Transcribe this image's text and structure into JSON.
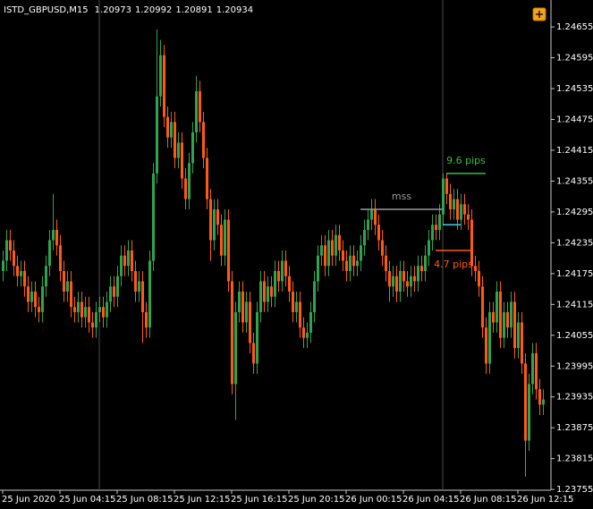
{
  "chart_data": {
    "type": "candlestick",
    "symbol": "ISTD_GBPUSD,M15",
    "header_ohlc": [
      1.20973,
      1.20992,
      1.20891,
      1.20934
    ],
    "up_color": "#2ea44f",
    "down_color": "#ff5a14",
    "xlim": [
      -0.75,
      153.25
    ],
    "xticks": [
      {
        "value": 0,
        "label": "25 Jun 2020"
      },
      {
        "value": 16,
        "label": "25 Jun 04:15"
      },
      {
        "value": 32,
        "label": "25 Jun 08:15"
      },
      {
        "value": 48,
        "label": "25 Jun 12:15"
      },
      {
        "value": 64,
        "label": "25 Jun 16:15"
      },
      {
        "value": 80,
        "label": "25 Jun 20:15"
      },
      {
        "value": 96,
        "label": "26 Jun 00:15"
      },
      {
        "value": 112,
        "label": "26 Jun 04:15"
      },
      {
        "value": 128,
        "label": "26 Jun 08:15"
      },
      {
        "value": 144,
        "label": "26 Jun 12:15"
      }
    ],
    "ylim": [
      1.2375,
      1.2469
    ],
    "yticks": [
      1.24655,
      1.24595,
      1.24535,
      1.24475,
      1.24415,
      1.24355,
      1.24295,
      1.24235,
      1.24175,
      1.24115,
      1.24055,
      1.23995,
      1.23935,
      1.23875,
      1.23815,
      1.23755
    ],
    "separators": [
      27,
      123
    ],
    "annotations": [
      {
        "text": "mss",
        "color": "#9a9a9a",
        "level": 1.243,
        "from": 100,
        "to": 123,
        "label_side": "above"
      },
      {
        "text": "9.6 pips",
        "color": "#35c03a",
        "level": 1.2437,
        "from": 124,
        "to": 135,
        "label_side": "above"
      },
      {
        "text": "4.7 pips",
        "color": "#ff5a14",
        "level": 1.2422,
        "from": 121,
        "to": 131,
        "label_side": "below"
      },
      {
        "color": "#3fd0e0",
        "level": 1.2427,
        "from": 123,
        "to": 128
      }
    ],
    "ohlc": [
      [
        1.2418,
        1.2422,
        1.2416,
        1.242
      ],
      [
        1.242,
        1.2426,
        1.2418,
        1.2424
      ],
      [
        1.2424,
        1.2426,
        1.242,
        1.2422
      ],
      [
        1.2422,
        1.2424,
        1.2417,
        1.2419
      ],
      [
        1.2419,
        1.2421,
        1.2415,
        1.2417
      ],
      [
        1.2417,
        1.242,
        1.2415,
        1.2418
      ],
      [
        1.2418,
        1.242,
        1.2413,
        1.2415
      ],
      [
        1.2415,
        1.2417,
        1.241,
        1.2412
      ],
      [
        1.2412,
        1.2416,
        1.241,
        1.2414
      ],
      [
        1.2414,
        1.2416,
        1.2409,
        1.2411
      ],
      [
        1.2411,
        1.2413,
        1.2408,
        1.241
      ],
      [
        1.241,
        1.2417,
        1.2408,
        1.2415
      ],
      [
        1.2415,
        1.2421,
        1.2413,
        1.2419
      ],
      [
        1.2419,
        1.2426,
        1.2417,
        1.2424
      ],
      [
        1.2424,
        1.2433,
        1.2422,
        1.2426
      ],
      [
        1.2426,
        1.2428,
        1.2421,
        1.2423
      ],
      [
        1.2423,
        1.2425,
        1.2416,
        1.2418
      ],
      [
        1.2418,
        1.242,
        1.2412,
        1.2414
      ],
      [
        1.2414,
        1.2418,
        1.2412,
        1.2416
      ],
      [
        1.2416,
        1.2418,
        1.2409,
        1.2411
      ],
      [
        1.2411,
        1.2413,
        1.2408,
        1.241
      ],
      [
        1.241,
        1.2414,
        1.2408,
        1.2412
      ],
      [
        1.2412,
        1.2414,
        1.2407,
        1.2409
      ],
      [
        1.2409,
        1.2413,
        1.2407,
        1.2411
      ],
      [
        1.2411,
        1.2413,
        1.2406,
        1.2408
      ],
      [
        1.2408,
        1.241,
        1.2405,
        1.2407
      ],
      [
        1.2407,
        1.2412,
        1.2405,
        1.241
      ],
      [
        1.241,
        1.2413,
        1.2408,
        1.2411
      ],
      [
        1.2411,
        1.2413,
        1.2407,
        1.2409
      ],
      [
        1.2409,
        1.2414,
        1.2407,
        1.2412
      ],
      [
        1.2412,
        1.2417,
        1.241,
        1.2415
      ],
      [
        1.2415,
        1.2417,
        1.2411,
        1.2413
      ],
      [
        1.2413,
        1.2419,
        1.2411,
        1.2417
      ],
      [
        1.2417,
        1.2423,
        1.2415,
        1.2421
      ],
      [
        1.2421,
        1.2423,
        1.2417,
        1.2419
      ],
      [
        1.2419,
        1.2424,
        1.2417,
        1.2422
      ],
      [
        1.2422,
        1.2424,
        1.2416,
        1.2418
      ],
      [
        1.2418,
        1.242,
        1.2412,
        1.2414
      ],
      [
        1.2414,
        1.2418,
        1.2412,
        1.2416
      ],
      [
        1.2416,
        1.2418,
        1.2404,
        1.241
      ],
      [
        1.241,
        1.2412,
        1.2405,
        1.2407
      ],
      [
        1.2407,
        1.2422,
        1.2405,
        1.242
      ],
      [
        1.242,
        1.2439,
        1.2418,
        1.2437
      ],
      [
        1.2437,
        1.2465,
        1.2435,
        1.2452
      ],
      [
        1.2452,
        1.2463,
        1.245,
        1.246
      ],
      [
        1.246,
        1.2462,
        1.2446,
        1.2448
      ],
      [
        1.2448,
        1.245,
        1.2442,
        1.2444
      ],
      [
        1.2444,
        1.2449,
        1.2442,
        1.2447
      ],
      [
        1.2447,
        1.2449,
        1.2438,
        1.244
      ],
      [
        1.244,
        1.2445,
        1.2438,
        1.2443
      ],
      [
        1.2443,
        1.2445,
        1.2434,
        1.2436
      ],
      [
        1.2436,
        1.2438,
        1.243,
        1.2432
      ],
      [
        1.2432,
        1.2441,
        1.243,
        1.2439
      ],
      [
        1.2439,
        1.2447,
        1.2437,
        1.2445
      ],
      [
        1.2445,
        1.2456,
        1.2443,
        1.2453
      ],
      [
        1.2453,
        1.2455,
        1.2445,
        1.2447
      ],
      [
        1.2447,
        1.2449,
        1.2438,
        1.244
      ],
      [
        1.244,
        1.2442,
        1.243,
        1.2432
      ],
      [
        1.2432,
        1.2434,
        1.242,
        1.2424
      ],
      [
        1.2424,
        1.2432,
        1.2422,
        1.243
      ],
      [
        1.243,
        1.2432,
        1.2425,
        1.2427
      ],
      [
        1.2427,
        1.2429,
        1.2419,
        1.2421
      ],
      [
        1.2421,
        1.243,
        1.2419,
        1.2428
      ],
      [
        1.2428,
        1.243,
        1.2414,
        1.2416
      ],
      [
        1.2416,
        1.2418,
        1.2394,
        1.2396
      ],
      [
        1.2396,
        1.2412,
        1.2389,
        1.241
      ],
      [
        1.241,
        1.2416,
        1.2408,
        1.2414
      ],
      [
        1.2414,
        1.2416,
        1.2406,
        1.2408
      ],
      [
        1.2408,
        1.2414,
        1.2406,
        1.2412
      ],
      [
        1.2412,
        1.2414,
        1.2402,
        1.2404
      ],
      [
        1.2404,
        1.2406,
        1.2398,
        1.24
      ],
      [
        1.24,
        1.2412,
        1.2398,
        1.241
      ],
      [
        1.241,
        1.2418,
        1.2408,
        1.2416
      ],
      [
        1.2416,
        1.2418,
        1.241,
        1.2412
      ],
      [
        1.2412,
        1.2417,
        1.241,
        1.2415
      ],
      [
        1.2415,
        1.2417,
        1.2411,
        1.2413
      ],
      [
        1.2413,
        1.242,
        1.2411,
        1.2418
      ],
      [
        1.2418,
        1.242,
        1.2414,
        1.2416
      ],
      [
        1.2416,
        1.2422,
        1.2414,
        1.242
      ],
      [
        1.242,
        1.2422,
        1.2415,
        1.2417
      ],
      [
        1.2417,
        1.2419,
        1.2412,
        1.2414
      ],
      [
        1.2414,
        1.2416,
        1.2408,
        1.241
      ],
      [
        1.241,
        1.2414,
        1.2408,
        1.2412
      ],
      [
        1.2412,
        1.2414,
        1.2405,
        1.2407
      ],
      [
        1.2407,
        1.2409,
        1.2403,
        1.2405
      ],
      [
        1.2405,
        1.2408,
        1.2403,
        1.2406
      ],
      [
        1.2406,
        1.2412,
        1.2404,
        1.241
      ],
      [
        1.241,
        1.2418,
        1.2408,
        1.2416
      ],
      [
        1.2416,
        1.2423,
        1.2414,
        1.2421
      ],
      [
        1.2421,
        1.2425,
        1.2419,
        1.2423
      ],
      [
        1.2423,
        1.2425,
        1.2417,
        1.2419
      ],
      [
        1.2419,
        1.2426,
        1.2417,
        1.2424
      ],
      [
        1.2424,
        1.2426,
        1.2419,
        1.2421
      ],
      [
        1.2421,
        1.2427,
        1.2419,
        1.2425
      ],
      [
        1.2425,
        1.2427,
        1.242,
        1.2422
      ],
      [
        1.2422,
        1.2424,
        1.2418,
        1.242
      ],
      [
        1.242,
        1.2422,
        1.2416,
        1.2418
      ],
      [
        1.2418,
        1.2423,
        1.2416,
        1.2421
      ],
      [
        1.2421,
        1.2423,
        1.2417,
        1.2419
      ],
      [
        1.2419,
        1.2422,
        1.2417,
        1.242
      ],
      [
        1.242,
        1.2425,
        1.2418,
        1.2423
      ],
      [
        1.2423,
        1.2428,
        1.2421,
        1.2426
      ],
      [
        1.2426,
        1.243,
        1.2424,
        1.2428
      ],
      [
        1.2428,
        1.2432,
        1.2426,
        1.243
      ],
      [
        1.243,
        1.2432,
        1.2425,
        1.2427
      ],
      [
        1.2427,
        1.2429,
        1.2422,
        1.2424
      ],
      [
        1.2424,
        1.2426,
        1.2419,
        1.2421
      ],
      [
        1.2421,
        1.2423,
        1.2416,
        1.2418
      ],
      [
        1.2418,
        1.242,
        1.2412,
        1.2415
      ],
      [
        1.2415,
        1.2419,
        1.2413,
        1.2417
      ],
      [
        1.2417,
        1.2419,
        1.2412,
        1.2414
      ],
      [
        1.2414,
        1.242,
        1.2412,
        1.2418
      ],
      [
        1.2418,
        1.242,
        1.2414,
        1.2416
      ],
      [
        1.2416,
        1.2418,
        1.2413,
        1.2415
      ],
      [
        1.2415,
        1.2419,
        1.2413,
        1.2417
      ],
      [
        1.2417,
        1.2419,
        1.2414,
        1.2416
      ],
      [
        1.2416,
        1.2421,
        1.2414,
        1.2419
      ],
      [
        1.2419,
        1.2421,
        1.2416,
        1.2418
      ],
      [
        1.2418,
        1.2423,
        1.2416,
        1.2421
      ],
      [
        1.2421,
        1.2426,
        1.2419,
        1.2424
      ],
      [
        1.2424,
        1.2429,
        1.2422,
        1.2427
      ],
      [
        1.2427,
        1.2429,
        1.2424,
        1.2426
      ],
      [
        1.2426,
        1.2431,
        1.2424,
        1.2429
      ],
      [
        1.2429,
        1.2437,
        1.2427,
        1.2436
      ],
      [
        1.2436,
        1.2437,
        1.2431,
        1.2433
      ],
      [
        1.2433,
        1.2435,
        1.2428,
        1.243
      ],
      [
        1.243,
        1.2434,
        1.2428,
        1.2432
      ],
      [
        1.2432,
        1.2434,
        1.2426,
        1.2428
      ],
      [
        1.2428,
        1.2433,
        1.2426,
        1.2431
      ],
      [
        1.2431,
        1.2433,
        1.2427,
        1.2429
      ],
      [
        1.2429,
        1.2431,
        1.2426,
        1.2428
      ],
      [
        1.2428,
        1.243,
        1.2417,
        1.2419
      ],
      [
        1.2419,
        1.2421,
        1.2416,
        1.2418
      ],
      [
        1.2418,
        1.242,
        1.2413,
        1.2415
      ],
      [
        1.2415,
        1.2417,
        1.2405,
        1.2407
      ],
      [
        1.2407,
        1.2409,
        1.2398,
        1.24
      ],
      [
        1.24,
        1.2412,
        1.2398,
        1.241
      ],
      [
        1.241,
        1.2412,
        1.2406,
        1.2408
      ],
      [
        1.2408,
        1.2416,
        1.2406,
        1.2414
      ],
      [
        1.2414,
        1.2416,
        1.2403,
        1.2405
      ],
      [
        1.2405,
        1.2412,
        1.2403,
        1.241
      ],
      [
        1.241,
        1.2412,
        1.2405,
        1.2407
      ],
      [
        1.2407,
        1.2414,
        1.2405,
        1.2412
      ],
      [
        1.2412,
        1.2414,
        1.2401,
        1.2403
      ],
      [
        1.2403,
        1.241,
        1.2401,
        1.2408
      ],
      [
        1.2408,
        1.241,
        1.2398,
        1.24
      ],
      [
        1.24,
        1.2402,
        1.2378,
        1.2385
      ],
      [
        1.2385,
        1.2398,
        1.2383,
        1.2396
      ],
      [
        1.2396,
        1.2404,
        1.2394,
        1.2402
      ],
      [
        1.2402,
        1.2404,
        1.2393,
        1.2395
      ],
      [
        1.2395,
        1.2397,
        1.239,
        1.2392
      ],
      [
        1.2392,
        1.2395,
        1.239,
        1.2393
      ]
    ]
  }
}
